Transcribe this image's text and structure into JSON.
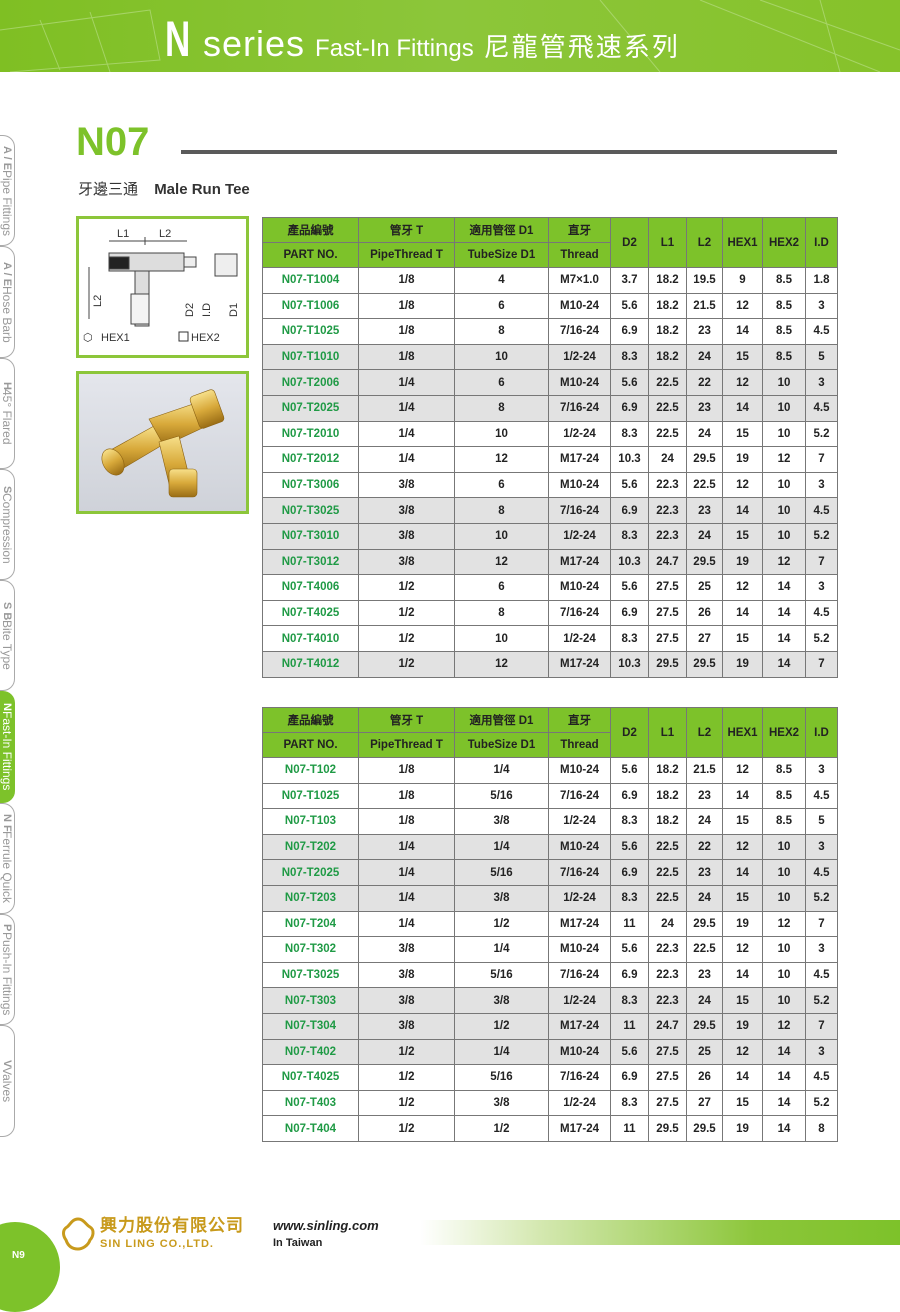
{
  "banner": {
    "letter": "N",
    "series": "series",
    "subtitle": "Fast-In Fittings",
    "chinese": "尼龍管飛速系列"
  },
  "model": "N07",
  "product": {
    "name_cn": "牙邊三通",
    "name_en": "Male Run Tee"
  },
  "sidebar": [
    {
      "code": "A / E",
      "label": "Pipe Fittings",
      "active": false
    },
    {
      "code": "A / E",
      "label": "Hose Barb",
      "active": false
    },
    {
      "code": "H",
      "label": "45° Flared",
      "active": false
    },
    {
      "code": "S",
      "label": "Compression",
      "active": false
    },
    {
      "code": "S B",
      "label": "Bite Type",
      "active": false
    },
    {
      "code": "N",
      "label": "Fast-In Fittings",
      "active": true
    },
    {
      "code": "N F",
      "label": "Ferrule Quick",
      "active": false
    },
    {
      "code": "P",
      "label": "Push-In Fittings",
      "active": false
    },
    {
      "code": "V",
      "label": "Valves",
      "active": false
    }
  ],
  "diagram_labels": {
    "l1": "L1",
    "l2": "L2",
    "l2v": "L2",
    "d2": "D2",
    "id": "I.D",
    "d1": "D1",
    "hex1": "HEX1",
    "hex2": "HEX2"
  },
  "table_header": {
    "row1": [
      "產品編號",
      "管牙 T",
      "適用管徑 D1",
      "直牙"
    ],
    "row2": [
      "PART NO.",
      "PipeThread T",
      "TubeSize D1",
      "Thread"
    ],
    "dims": [
      "D2",
      "L1",
      "L2",
      "HEX1",
      "HEX2",
      "I.D"
    ]
  },
  "tables": [
    {
      "rows": [
        [
          "N07-T1004",
          "1/8",
          "4",
          "M7×1.0",
          "3.7",
          "18.2",
          "19.5",
          "9",
          "8.5",
          "1.8"
        ],
        [
          "N07-T1006",
          "1/8",
          "6",
          "M10-24",
          "5.6",
          "18.2",
          "21.5",
          "12",
          "8.5",
          "3"
        ],
        [
          "N07-T1025",
          "1/8",
          "8",
          "7/16-24",
          "6.9",
          "18.2",
          "23",
          "14",
          "8.5",
          "4.5"
        ],
        [
          "N07-T1010",
          "1/8",
          "10",
          "1/2-24",
          "8.3",
          "18.2",
          "24",
          "15",
          "8.5",
          "5"
        ],
        [
          "N07-T2006",
          "1/4",
          "6",
          "M10-24",
          "5.6",
          "22.5",
          "22",
          "12",
          "10",
          "3"
        ],
        [
          "N07-T2025",
          "1/4",
          "8",
          "7/16-24",
          "6.9",
          "22.5",
          "23",
          "14",
          "10",
          "4.5"
        ],
        [
          "N07-T2010",
          "1/4",
          "10",
          "1/2-24",
          "8.3",
          "22.5",
          "24",
          "15",
          "10",
          "5.2"
        ],
        [
          "N07-T2012",
          "1/4",
          "12",
          "M17-24",
          "10.3",
          "24",
          "29.5",
          "19",
          "12",
          "7"
        ],
        [
          "N07-T3006",
          "3/8",
          "6",
          "M10-24",
          "5.6",
          "22.3",
          "22.5",
          "12",
          "10",
          "3"
        ],
        [
          "N07-T3025",
          "3/8",
          "8",
          "7/16-24",
          "6.9",
          "22.3",
          "23",
          "14",
          "10",
          "4.5"
        ],
        [
          "N07-T3010",
          "3/8",
          "10",
          "1/2-24",
          "8.3",
          "22.3",
          "24",
          "15",
          "10",
          "5.2"
        ],
        [
          "N07-T3012",
          "3/8",
          "12",
          "M17-24",
          "10.3",
          "24.7",
          "29.5",
          "19",
          "12",
          "7"
        ],
        [
          "N07-T4006",
          "1/2",
          "6",
          "M10-24",
          "5.6",
          "27.5",
          "25",
          "12",
          "14",
          "3"
        ],
        [
          "N07-T4025",
          "1/2",
          "8",
          "7/16-24",
          "6.9",
          "27.5",
          "26",
          "14",
          "14",
          "4.5"
        ],
        [
          "N07-T4010",
          "1/2",
          "10",
          "1/2-24",
          "8.3",
          "27.5",
          "27",
          "15",
          "14",
          "5.2"
        ],
        [
          "N07-T4012",
          "1/2",
          "12",
          "M17-24",
          "10.3",
          "29.5",
          "29.5",
          "19",
          "14",
          "7"
        ]
      ],
      "shaded": [
        3,
        4,
        5,
        9,
        10,
        11,
        15
      ]
    },
    {
      "rows": [
        [
          "N07-T102",
          "1/8",
          "1/4",
          "M10-24",
          "5.6",
          "18.2",
          "21.5",
          "12",
          "8.5",
          "3"
        ],
        [
          "N07-T1025",
          "1/8",
          "5/16",
          "7/16-24",
          "6.9",
          "18.2",
          "23",
          "14",
          "8.5",
          "4.5"
        ],
        [
          "N07-T103",
          "1/8",
          "3/8",
          "1/2-24",
          "8.3",
          "18.2",
          "24",
          "15",
          "8.5",
          "5"
        ],
        [
          "N07-T202",
          "1/4",
          "1/4",
          "M10-24",
          "5.6",
          "22.5",
          "22",
          "12",
          "10",
          "3"
        ],
        [
          "N07-T2025",
          "1/4",
          "5/16",
          "7/16-24",
          "6.9",
          "22.5",
          "23",
          "14",
          "10",
          "4.5"
        ],
        [
          "N07-T203",
          "1/4",
          "3/8",
          "1/2-24",
          "8.3",
          "22.5",
          "24",
          "15",
          "10",
          "5.2"
        ],
        [
          "N07-T204",
          "1/4",
          "1/2",
          "M17-24",
          "11",
          "24",
          "29.5",
          "19",
          "12",
          "7"
        ],
        [
          "N07-T302",
          "3/8",
          "1/4",
          "M10-24",
          "5.6",
          "22.3",
          "22.5",
          "12",
          "10",
          "3"
        ],
        [
          "N07-T3025",
          "3/8",
          "5/16",
          "7/16-24",
          "6.9",
          "22.3",
          "23",
          "14",
          "10",
          "4.5"
        ],
        [
          "N07-T303",
          "3/8",
          "3/8",
          "1/2-24",
          "8.3",
          "22.3",
          "24",
          "15",
          "10",
          "5.2"
        ],
        [
          "N07-T304",
          "3/8",
          "1/2",
          "M17-24",
          "11",
          "24.7",
          "29.5",
          "19",
          "12",
          "7"
        ],
        [
          "N07-T402",
          "1/2",
          "1/4",
          "M10-24",
          "5.6",
          "27.5",
          "25",
          "12",
          "14",
          "3"
        ],
        [
          "N07-T4025",
          "1/2",
          "5/16",
          "7/16-24",
          "6.9",
          "27.5",
          "26",
          "14",
          "14",
          "4.5"
        ],
        [
          "N07-T403",
          "1/2",
          "3/8",
          "1/2-24",
          "8.3",
          "27.5",
          "27",
          "15",
          "14",
          "5.2"
        ],
        [
          "N07-T404",
          "1/2",
          "1/2",
          "M17-24",
          "11",
          "29.5",
          "29.5",
          "19",
          "14",
          "8"
        ]
      ],
      "shaded": [
        3,
        4,
        5,
        9,
        10,
        11
      ]
    }
  ],
  "footer": {
    "company_cn": "興力股份有限公司",
    "company_en": "SIN LING CO.,LTD.",
    "url": "www.sinling.com",
    "location": "In Taiwan",
    "page": "N9"
  },
  "colors": {
    "accent": "#7dc22a",
    "part_number": "#1f9a45",
    "shaded_row": "#e2e2e2",
    "rule": "#5a5a5a"
  }
}
